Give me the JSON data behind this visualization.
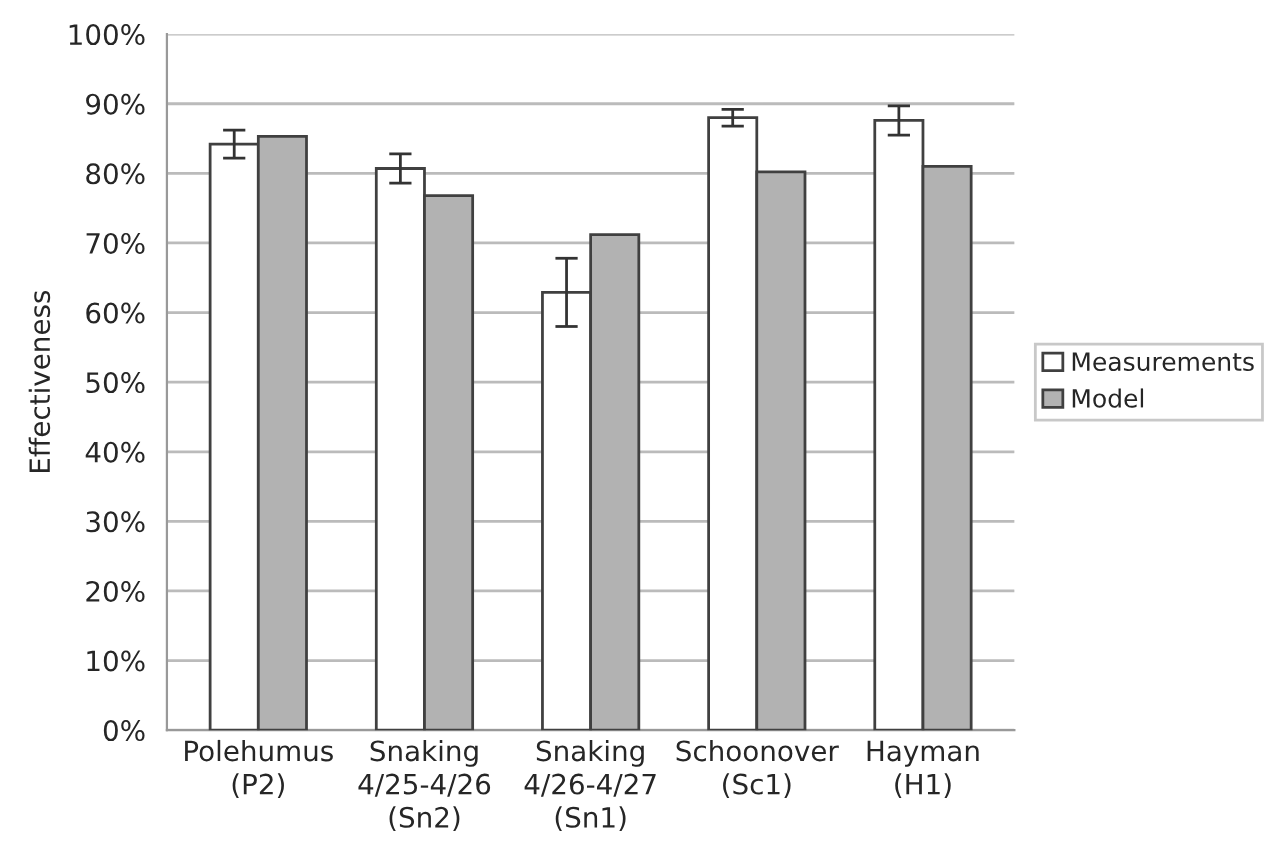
{
  "chart_data": {
    "type": "bar",
    "ylabel": "Effectiveness",
    "categories": [
      "Polehumus\n(P2)",
      "Snaking\n4/25-4/26\n(Sn2)",
      "Snaking\n4/26-4/27\n(Sn1)",
      "Schoonover\n(Sc1)",
      "Hayman\n(H1)"
    ],
    "series": [
      {
        "name": "Measurements",
        "color": "#ffffff",
        "values": [
          84.2,
          80.7,
          62.9,
          88.0,
          87.6
        ],
        "errors": [
          2.0,
          2.1,
          4.9,
          1.2,
          2.1
        ]
      },
      {
        "name": "Model",
        "color": "#b2b2b2",
        "values": [
          85.3,
          76.8,
          71.2,
          80.2,
          81.0
        ]
      }
    ],
    "ylim": [
      0,
      100
    ],
    "yticks": [
      {
        "value": 0,
        "label": "0%"
      },
      {
        "value": 10,
        "label": "10%"
      },
      {
        "value": 20,
        "label": "20%"
      },
      {
        "value": 30,
        "label": "30%"
      },
      {
        "value": 40,
        "label": "40%"
      },
      {
        "value": 50,
        "label": "50%"
      },
      {
        "value": 60,
        "label": "60%"
      },
      {
        "value": 70,
        "label": "70%"
      },
      {
        "value": 80,
        "label": "80%"
      },
      {
        "value": 90,
        "label": "90%"
      },
      {
        "value": 100,
        "label": "100%"
      }
    ],
    "grid": "y",
    "legend": "right"
  }
}
